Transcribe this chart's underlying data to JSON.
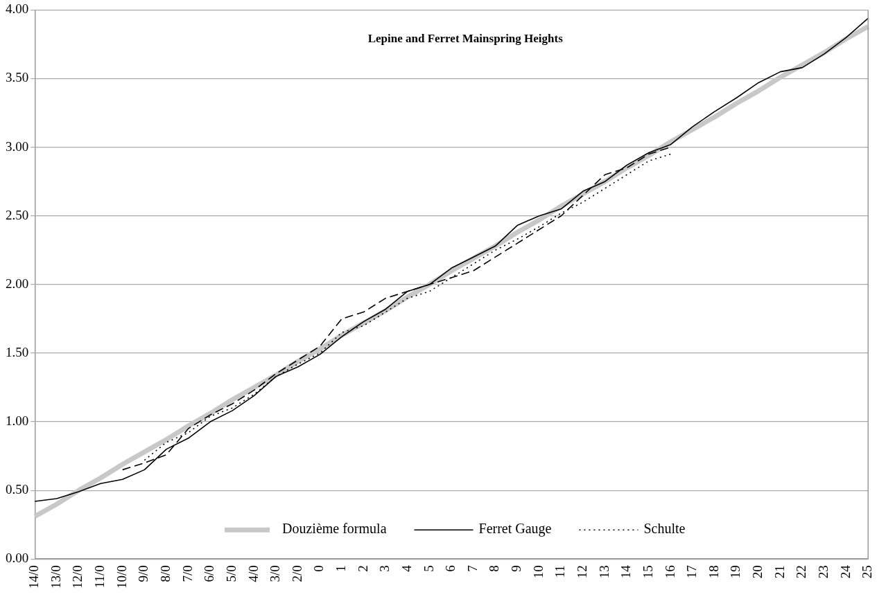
{
  "chart_data": {
    "type": "line",
    "title": "Lepine and Ferret Mainspring Heights",
    "categories": [
      "14/0",
      "13/0",
      "12/0",
      "11/0",
      "10/0",
      "9/0",
      "8/0",
      "7/0",
      "6/0",
      "5/0",
      "4/0",
      "3/0",
      "2/0",
      "0",
      "1",
      "2",
      "3",
      "4",
      "5",
      "6",
      "7",
      "8",
      "9",
      "10",
      "11",
      "12",
      "13",
      "14",
      "15",
      "16",
      "17",
      "18",
      "19",
      "20",
      "21",
      "22",
      "23",
      "24",
      "25"
    ],
    "series": [
      {
        "name": "Douzième formula",
        "color": "#c8c8c8",
        "line_style": "solid",
        "values": [
          0.31,
          0.4,
          0.5,
          0.59,
          0.69,
          0.78,
          0.87,
          0.97,
          1.06,
          1.16,
          1.25,
          1.34,
          1.44,
          1.53,
          1.63,
          1.72,
          1.81,
          1.91,
          2.0,
          2.1,
          2.19,
          2.28,
          2.38,
          2.47,
          2.57,
          2.66,
          2.75,
          2.85,
          2.94,
          3.04,
          3.13,
          3.22,
          3.32,
          3.41,
          3.51,
          3.6,
          3.69,
          3.79,
          3.88
        ]
      },
      {
        "name": "Ferret Gauge",
        "color": "#000000",
        "line_style": "solid",
        "values": [
          0.42,
          0.44,
          0.49,
          0.55,
          0.58,
          0.65,
          0.8,
          0.88,
          1.0,
          1.08,
          1.19,
          1.33,
          1.4,
          1.49,
          1.62,
          1.73,
          1.82,
          1.95,
          2.0,
          2.12,
          2.2,
          2.28,
          2.43,
          2.5,
          2.55,
          2.68,
          2.75,
          2.87,
          2.96,
          3.02,
          3.15,
          3.26,
          3.36,
          3.47,
          3.55,
          3.58,
          3.68,
          3.8,
          3.94
        ]
      },
      {
        "color": "#000000",
        "line_style": "dashed",
        "values": [
          null,
          null,
          null,
          null,
          0.65,
          0.7,
          0.76,
          0.95,
          1.05,
          1.13,
          1.23,
          1.35,
          1.45,
          1.55,
          1.75,
          1.8,
          1.9,
          1.95,
          2.0,
          2.05,
          2.1,
          2.2,
          2.3,
          2.4,
          2.5,
          2.65,
          2.8,
          2.85,
          2.95,
          3.0,
          null,
          null,
          null,
          null,
          null,
          null,
          null,
          null,
          null
        ]
      },
      {
        "name": "Schulte",
        "color": "#000000",
        "line_style": "dotted",
        "values": [
          null,
          null,
          null,
          null,
          null,
          0.72,
          0.85,
          0.92,
          1.04,
          1.1,
          1.2,
          1.33,
          1.42,
          1.5,
          1.65,
          1.7,
          1.8,
          1.9,
          1.95,
          2.05,
          2.15,
          2.25,
          2.33,
          2.42,
          2.52,
          2.6,
          2.7,
          2.8,
          2.9,
          2.95,
          null,
          null,
          null,
          null,
          null,
          null,
          null,
          null,
          null
        ]
      }
    ],
    "ylim": [
      0,
      4
    ],
    "yticks": [
      {
        "value": 0,
        "label": "0.00"
      },
      {
        "value": 0.5,
        "label": "0.50"
      },
      {
        "value": 1,
        "label": "1.00"
      },
      {
        "value": 1.5,
        "label": "1.50"
      },
      {
        "value": 2,
        "label": "2.00"
      },
      {
        "value": 2.5,
        "label": "2.50"
      },
      {
        "value": 3,
        "label": "3.00"
      },
      {
        "value": 3.5,
        "label": "3.50"
      },
      {
        "value": 4,
        "label": "4.00"
      }
    ],
    "grid": "y",
    "legend": "bottom",
    "marker": "none"
  }
}
